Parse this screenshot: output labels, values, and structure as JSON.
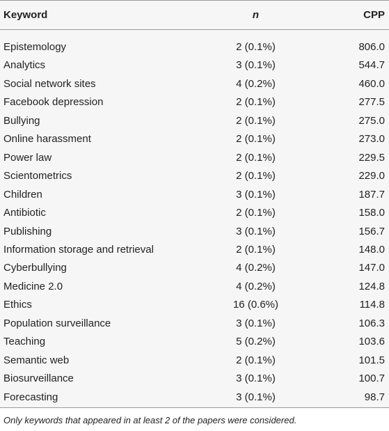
{
  "table": {
    "header": [
      "Keyword",
      "n",
      "CPP"
    ],
    "rows": [
      [
        "Epistemology",
        "2 (0.1%)",
        "806.0"
      ],
      [
        "Analytics",
        "3 (0.1%)",
        "544.7"
      ],
      [
        "Social network sites",
        "4 (0.2%)",
        "460.0"
      ],
      [
        "Facebook depression",
        "2 (0.1%)",
        "277.5"
      ],
      [
        "Bullying",
        "2 (0.1%)",
        "275.0"
      ],
      [
        "Online harassment",
        "2 (0.1%)",
        "273.0"
      ],
      [
        "Power law",
        "2 (0.1%)",
        "229.5"
      ],
      [
        "Scientometrics",
        "2 (0.1%)",
        "229.0"
      ],
      [
        "Children",
        "3 (0.1%)",
        "187.7"
      ],
      [
        "Antibiotic",
        "2 (0.1%)",
        "158.0"
      ],
      [
        "Publishing",
        "3 (0.1%)",
        "156.7"
      ],
      [
        "Information storage and retrieval",
        "2 (0.1%)",
        "148.0"
      ],
      [
        "Cyberbullying",
        "4 (0.2%)",
        "147.0"
      ],
      [
        "Medicine 2.0",
        "4 (0.2%)",
        "124.8"
      ],
      [
        "Ethics",
        "16 (0.6%)",
        "114.8"
      ],
      [
        "Population surveillance",
        "3 (0.1%)",
        "106.3"
      ],
      [
        "Teaching",
        "5 (0.2%)",
        "103.6"
      ],
      [
        "Semantic web",
        "2 (0.1%)",
        "101.5"
      ],
      [
        "Biosurveillance",
        "3 (0.1%)",
        "100.7"
      ],
      [
        "Forecasting",
        "3 (0.1%)",
        "98.7"
      ]
    ]
  },
  "footnote": "Only keywords that appeared in at least 2 of the papers were considered."
}
